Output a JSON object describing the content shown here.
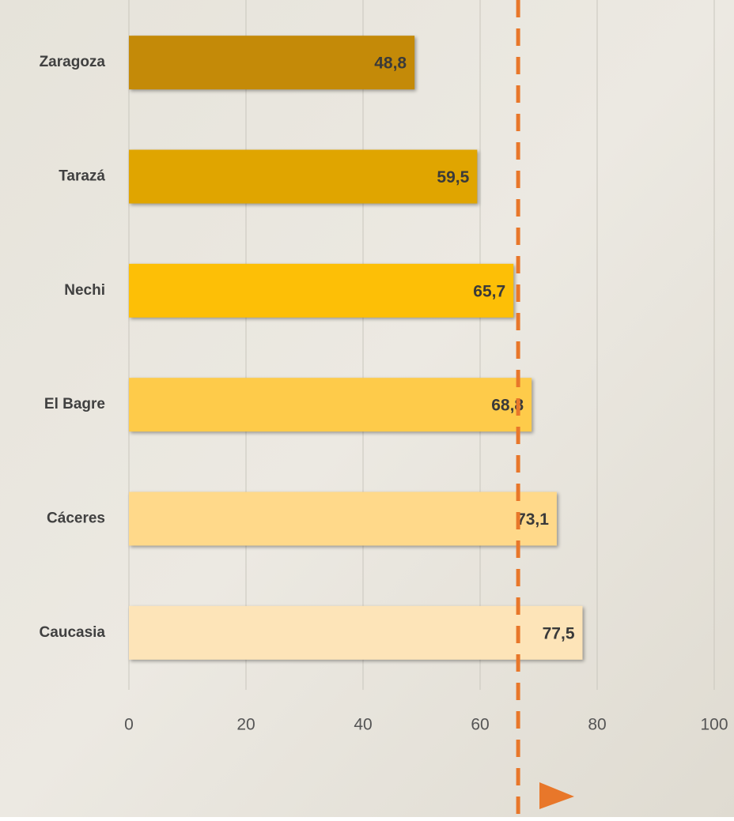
{
  "chart_data": {
    "type": "bar",
    "orientation": "horizontal",
    "categories": [
      "Zaragoza",
      "Tarazá",
      "Nechi",
      "El Bagre",
      "Cáceres",
      "Caucasia"
    ],
    "values": [
      48.8,
      59.5,
      65.7,
      68.8,
      73.1,
      77.5
    ],
    "value_labels": [
      "48,8",
      "59,5",
      "65,7",
      "68,8",
      "73,1",
      "77,5"
    ],
    "colors": [
      "#c48a08",
      "#e0a500",
      "#fdbf06",
      "#fecb4a",
      "#ffd98a",
      "#fde4b8"
    ],
    "xlim": [
      0,
      100
    ],
    "xticks": [
      0,
      20,
      40,
      60,
      80,
      100
    ],
    "grid": true,
    "reference_line": 66.5,
    "reference_color": "#e8772a"
  }
}
